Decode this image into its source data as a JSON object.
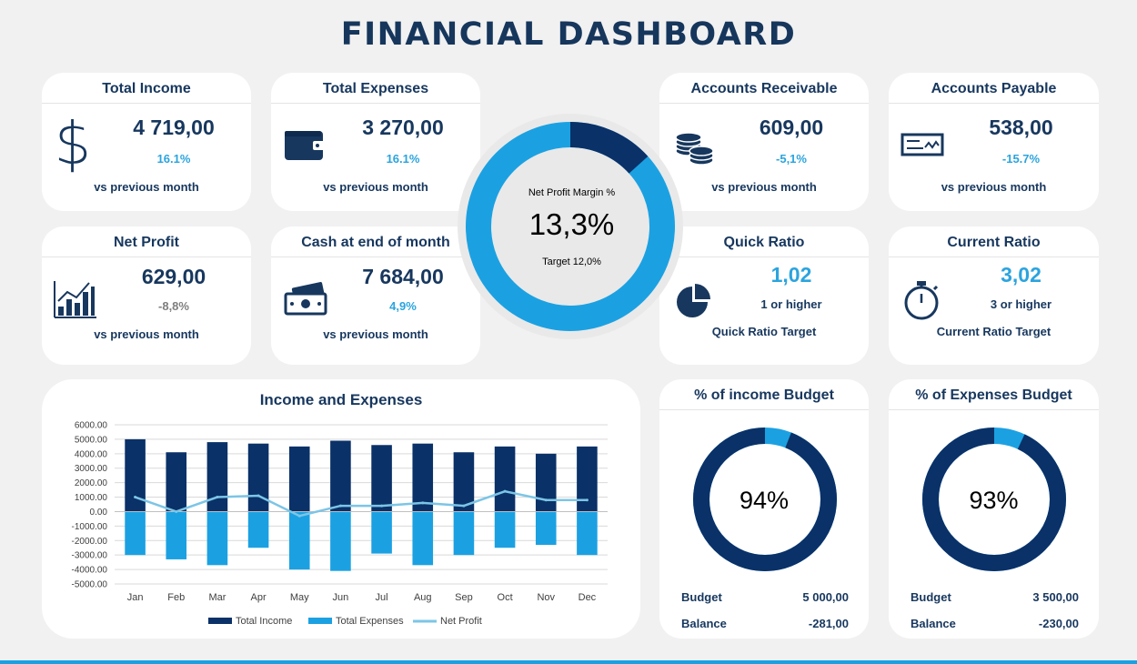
{
  "title": "FINANCIAL DASHBOARD",
  "colors": {
    "dark_navy": "#0a3168",
    "accent_blue": "#2ba4de",
    "light_blue": "#1ba1e2",
    "background": "#f1f1f1",
    "net_profit_line": "#7cc5e6"
  },
  "kpis": {
    "total_income": {
      "title": "Total Income",
      "value": "4 719,00",
      "change": "16.1%",
      "note": "vs previous month",
      "icon": "dollar-icon"
    },
    "total_expenses": {
      "title": "Total Expenses",
      "value": "3 270,00",
      "change": "16.1%",
      "note": "vs previous month",
      "icon": "wallet-icon"
    },
    "accounts_receivable": {
      "title": "Accounts Receivable",
      "value": "609,00",
      "change": "-5,1%",
      "note": "vs previous month",
      "icon": "coins-icon"
    },
    "accounts_payable": {
      "title": "Accounts Payable",
      "value": "538,00",
      "change": "-15.7%",
      "note": "vs previous month",
      "icon": "check-icon"
    },
    "net_profit": {
      "title": "Net Profit",
      "value": "629,00",
      "change": "-8,8%",
      "note": "vs previous month",
      "icon": "bar-chart-icon"
    },
    "cash_end_month": {
      "title": "Cash at end of month",
      "value": "7 684,00",
      "change": "4,9%",
      "note": "vs previous month",
      "icon": "cash-icon"
    }
  },
  "ratios": {
    "quick": {
      "title": "Quick Ratio",
      "value": "1,02",
      "sub": "1 or higher",
      "note": "Quick Ratio Target",
      "icon": "pie-chart-icon"
    },
    "current": {
      "title": "Current Ratio",
      "value": "3,02",
      "sub": "3 or higher",
      "note": "Current Ratio Target",
      "icon": "stopwatch-icon"
    }
  },
  "net_profit_margin": {
    "label": "Net  Profit Margin %",
    "value": "13,3%",
    "target": "Target 12,0%",
    "fraction": 0.133
  },
  "budgets": {
    "income": {
      "title": "% of income Budget",
      "pct": "94%",
      "fraction": 0.94,
      "budget_label": "Budget",
      "budget_value": "5 000,00",
      "balance_label": "Balance",
      "balance_value": "-281,00"
    },
    "expenses": {
      "title": "% of Expenses Budget",
      "pct": "93%",
      "fraction": 0.93,
      "budget_label": "Budget",
      "budget_value": "3 500,00",
      "balance_label": "Balance",
      "balance_value": "-230,00"
    }
  },
  "chart_data": {
    "type": "bar",
    "title": "Income and  Expenses",
    "categories": [
      "Jan",
      "Feb",
      "Mar",
      "Apr",
      "May",
      "Jun",
      "Jul",
      "Aug",
      "Sep",
      "Oct",
      "Nov",
      "Dec"
    ],
    "series": [
      {
        "name": "Total Income",
        "type": "bar",
        "color": "#0a3168",
        "values": [
          5000,
          4100,
          4800,
          4700,
          4500,
          4900,
          4600,
          4700,
          4100,
          4500,
          4000,
          4500
        ]
      },
      {
        "name": "Total Expenses",
        "type": "bar",
        "color": "#1ba1e2",
        "values": [
          -3000,
          -3300,
          -3700,
          -2500,
          -4000,
          -4100,
          -2900,
          -3700,
          -3000,
          -2500,
          -2300,
          -3000
        ]
      },
      {
        "name": "Net Profit",
        "type": "line",
        "color": "#7cc5e6",
        "values": [
          1000,
          0,
          1000,
          1100,
          -300,
          400,
          400,
          600,
          400,
          1400,
          800,
          800
        ]
      }
    ],
    "ylim": [
      -5000,
      6000
    ],
    "yticks": [
      "6000.00",
      "5000.00",
      "4000.00",
      "3000.00",
      "2000.00",
      "1000.00",
      "0.00",
      "-1000.00",
      "-2000.00",
      "-3000.00",
      "-4000.00",
      "-5000.00"
    ],
    "ytick_values": [
      6000,
      5000,
      4000,
      3000,
      2000,
      1000,
      0,
      -1000,
      -2000,
      -3000,
      -4000,
      -5000
    ],
    "grid": true,
    "legend": "bottom"
  }
}
